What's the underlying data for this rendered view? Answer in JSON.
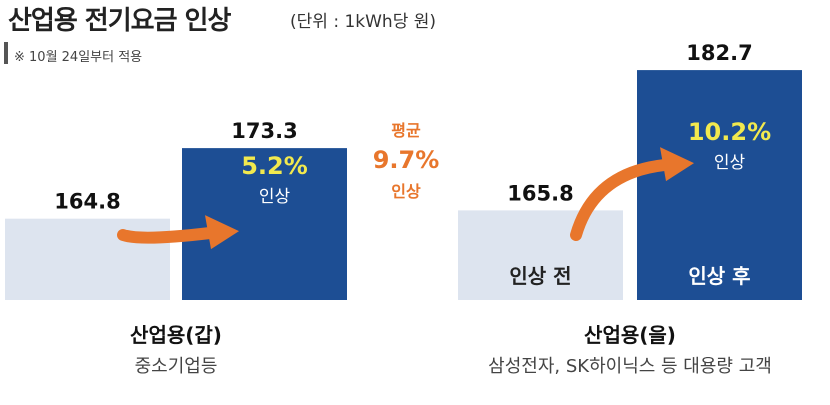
{
  "title": "산업용 전기요금 인상",
  "unit": "(단위 : 1kWh당 원)",
  "note": "※ 10월 24일부터 적용",
  "colors": {
    "before": "#dde4ef",
    "after": "#1d4e94",
    "arrow": "#e8762c",
    "pct": "#f2e94e"
  },
  "average": {
    "label": "평균",
    "value": "9.7%",
    "suffix": "인상"
  },
  "chart_data": {
    "type": "bar",
    "categories": [
      "산업용(갑)",
      "산업용(을)"
    ],
    "category_subtitles": [
      "중소기업등",
      "삼성전자, SK하이닉스 등 대용량 고객"
    ],
    "series": [
      {
        "name": "인상 전",
        "values": [
          164.8,
          165.8
        ]
      },
      {
        "name": "인상 후",
        "values": [
          173.3,
          182.7
        ]
      }
    ],
    "value_labels": [
      [
        "164.8",
        "173.3"
      ],
      [
        "165.8",
        "182.7"
      ]
    ],
    "increase_labels": [
      "5.2%",
      "10.2%"
    ],
    "increase_suffix": "인상",
    "bar_labels": [
      "인상 전",
      "인상 후"
    ]
  }
}
